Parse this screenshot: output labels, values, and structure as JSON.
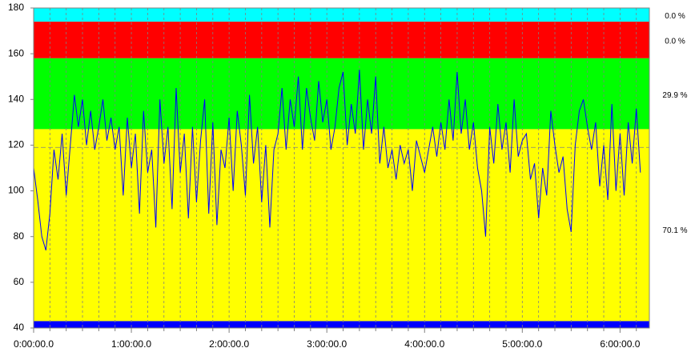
{
  "chart_data": {
    "type": "line",
    "ylim": [
      40,
      180
    ],
    "yticks": [
      40,
      60,
      80,
      100,
      120,
      140,
      160,
      180
    ],
    "xlim": [
      0,
      22680
    ],
    "xticks": [
      {
        "value": 0,
        "label": "0:00:00.0"
      },
      {
        "value": 3600,
        "label": "1:00:00.0"
      },
      {
        "value": 7200,
        "label": "2:00:00.0"
      },
      {
        "value": 10800,
        "label": "3:00:00.0"
      },
      {
        "value": 14400,
        "label": "4:00:00.0"
      },
      {
        "value": 18000,
        "label": "5:00:00.0"
      },
      {
        "value": 21600,
        "label": "6:00:00.0"
      }
    ],
    "x_minor_ticks": [
      600,
      1200,
      1800,
      2400,
      3000,
      4200,
      4800,
      5400,
      6000,
      6600,
      7800,
      8400,
      9000,
      9600,
      10200,
      11400,
      12000,
      12600,
      13200,
      13800,
      15000,
      15600,
      16200,
      16800,
      17400,
      18600,
      19200,
      19800,
      20400,
      21000,
      22200
    ],
    "zones": [
      {
        "low": 174,
        "high": 180,
        "color": "#00ffff",
        "percent": 0,
        "percent_label": "0.0 %"
      },
      {
        "low": 158,
        "high": 174,
        "color": "#ff0000",
        "percent": 0,
        "percent_label": "0.0 %"
      },
      {
        "low": 127,
        "high": 158,
        "color": "#00ff00",
        "percent": 29.9,
        "percent_label": "29.9 %"
      },
      {
        "low": 43,
        "high": 127,
        "color": "#ffff00",
        "percent": 70.1,
        "percent_label": "70.1 %"
      },
      {
        "low": 40,
        "high": 43,
        "color": "#0000ff"
      }
    ],
    "average": 119,
    "series": [
      {
        "color": "#0000ff",
        "x": [
          0,
          150,
          300,
          450,
          600,
          750,
          900,
          1050,
          1200,
          1350,
          1500,
          1650,
          1800,
          1950,
          2100,
          2250,
          2400,
          2550,
          2700,
          2850,
          3000,
          3150,
          3300,
          3450,
          3600,
          3750,
          3900,
          4050,
          4200,
          4350,
          4500,
          4650,
          4800,
          4950,
          5100,
          5250,
          5400,
          5550,
          5700,
          5850,
          6000,
          6150,
          6300,
          6450,
          6600,
          6750,
          6900,
          7050,
          7200,
          7350,
          7500,
          7650,
          7800,
          7950,
          8100,
          8250,
          8400,
          8550,
          8700,
          8850,
          9000,
          9150,
          9300,
          9450,
          9600,
          9750,
          9900,
          10050,
          10200,
          10350,
          10500,
          10650,
          10800,
          10950,
          11100,
          11250,
          11400,
          11550,
          11700,
          11850,
          12000,
          12150,
          12300,
          12450,
          12600,
          12750,
          12900,
          13050,
          13200,
          13350,
          13500,
          13650,
          13800,
          13950,
          14100,
          14250,
          14400,
          14550,
          14700,
          14850,
          15000,
          15150,
          15300,
          15450,
          15600,
          15750,
          15900,
          16050,
          16200,
          16350,
          16500,
          16650,
          16800,
          16950,
          17100,
          17250,
          17400,
          17550,
          17700,
          17850,
          18000,
          18150,
          18300,
          18450,
          18600,
          18750,
          18900,
          19050,
          19200,
          19350,
          19500,
          19650,
          19800,
          19950,
          20100,
          20250,
          20400,
          20550,
          20700,
          20850,
          21000,
          21150,
          21300,
          21450,
          21600,
          21750,
          21900,
          22050,
          22200,
          22350
        ],
        "values": [
          110,
          96,
          80,
          74,
          90,
          118,
          105,
          125,
          98,
          120,
          142,
          128,
          140,
          120,
          135,
          118,
          128,
          140,
          122,
          132,
          118,
          128,
          98,
          132,
          110,
          125,
          90,
          135,
          108,
          118,
          84,
          140,
          112,
          128,
          92,
          145,
          108,
          125,
          88,
          128,
          95,
          122,
          140,
          90,
          130,
          85,
          118,
          110,
          132,
          100,
          135,
          120,
          98,
          142,
          112,
          128,
          95,
          120,
          84,
          118,
          125,
          145,
          118,
          140,
          128,
          150,
          118,
          145,
          132,
          122,
          148,
          130,
          140,
          118,
          128,
          145,
          152,
          120,
          138,
          125,
          153,
          118,
          140,
          125,
          150,
          112,
          128,
          110,
          118,
          105,
          120,
          112,
          118,
          100,
          122,
          115,
          108,
          118,
          128,
          115,
          130,
          118,
          140,
          122,
          152,
          125,
          140,
          118,
          130,
          110,
          100,
          80,
          128,
          112,
          138,
          118,
          130,
          108,
          140,
          115,
          122,
          125,
          105,
          112,
          88,
          110,
          98,
          135,
          120,
          108,
          115,
          92,
          82,
          120,
          135,
          140,
          128,
          118,
          130,
          102,
          120,
          96,
          138,
          100,
          125,
          98,
          130,
          112,
          136,
          108
        ]
      }
    ]
  }
}
